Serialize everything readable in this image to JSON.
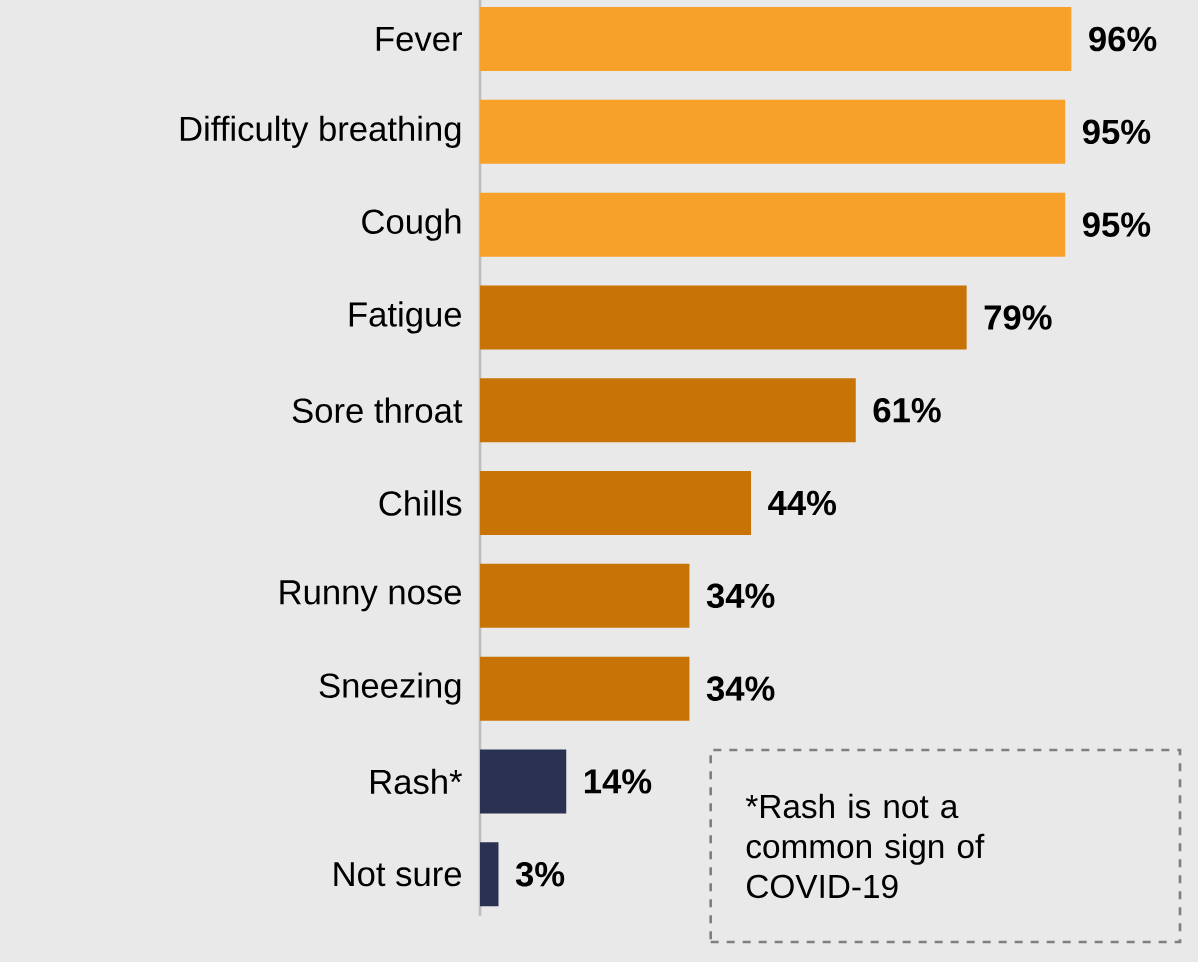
{
  "chart_data": {
    "type": "bar",
    "orientation": "horizontal",
    "categories": [
      "Fever",
      "Difficulty breathing",
      "Cough",
      "Fatigue",
      "Sore throat",
      "Chills",
      "Runny nose",
      "Sneezing",
      "Rash*",
      "Not sure"
    ],
    "values": [
      96,
      95,
      95,
      79,
      61,
      44,
      34,
      34,
      14,
      3
    ],
    "value_labels": [
      "96%",
      "95%",
      "95%",
      "79%",
      "61%",
      "44%",
      "34%",
      "34%",
      "14%",
      "3%"
    ],
    "colors": [
      "#f7a12b",
      "#f7a12b",
      "#f7a12b",
      "#c87305",
      "#c87305",
      "#c87305",
      "#c87305",
      "#c87305",
      "#2b3150",
      "#2b3150"
    ],
    "annotations": [
      "*Rash is not a common sign of COVID-19"
    ]
  }
}
